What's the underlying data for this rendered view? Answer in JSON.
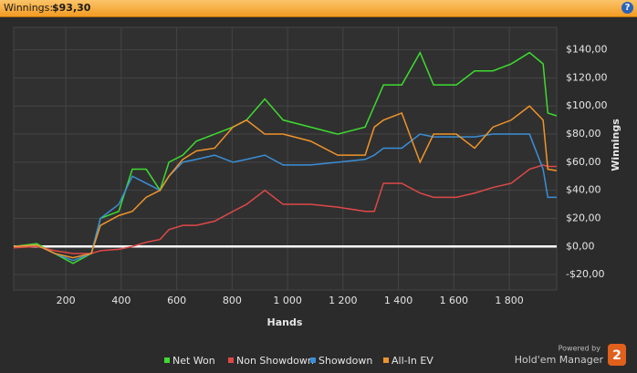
{
  "header": {
    "label": "Winnings:",
    "value": "$93,30"
  },
  "branding": {
    "powered": "Powered by",
    "product": "Hold'em Manager",
    "version": "2"
  },
  "chart_data": {
    "type": "line",
    "xlabel": "Hands",
    "ylabel": "Winnings",
    "x": [
      12,
      95,
      160,
      226,
      292,
      325,
      391,
      440,
      490,
      540,
      572,
      622,
      671,
      737,
      803,
      852,
      918,
      984,
      1083,
      1181,
      1280,
      1313,
      1346,
      1412,
      1478,
      1527,
      1609,
      1675,
      1741,
      1807,
      1873,
      1922,
      1939,
      1971
    ],
    "series": [
      {
        "name": "Net Won",
        "color": "#3ddc2f",
        "values": [
          0,
          2,
          -5,
          -12,
          -5,
          20,
          25,
          55,
          55,
          40,
          60,
          65,
          75,
          80,
          85,
          90,
          105,
          90,
          85,
          80,
          85,
          100,
          115,
          115,
          138,
          115,
          115,
          125,
          125,
          130,
          138,
          130,
          95,
          93
        ]
      },
      {
        "name": "Non Showdown",
        "color": "#e04848",
        "values": [
          -1,
          0,
          -3,
          -5,
          -5,
          -3,
          -2,
          0,
          3,
          5,
          12,
          15,
          15,
          18,
          25,
          30,
          40,
          30,
          30,
          28,
          25,
          25,
          45,
          45,
          38,
          35,
          35,
          38,
          42,
          45,
          55,
          58,
          57,
          57
        ]
      },
      {
        "name": "Showdown",
        "color": "#3a8fd8",
        "values": [
          0,
          1,
          -5,
          -10,
          -5,
          20,
          30,
          50,
          45,
          40,
          50,
          60,
          62,
          65,
          60,
          62,
          65,
          58,
          58,
          60,
          62,
          65,
          70,
          70,
          80,
          78,
          78,
          78,
          80,
          80,
          80,
          55,
          35,
          35
        ]
      },
      {
        "name": "All-In EV",
        "color": "#f0942a",
        "values": [
          0,
          1,
          -5,
          -8,
          -5,
          15,
          22,
          25,
          35,
          40,
          50,
          62,
          68,
          70,
          85,
          90,
          80,
          80,
          75,
          65,
          65,
          85,
          90,
          95,
          60,
          80,
          80,
          70,
          85,
          90,
          100,
          90,
          55,
          54
        ]
      }
    ],
    "xlim": [
      12,
      1971
    ],
    "xticks": [
      200,
      400,
      600,
      800,
      {
        "value": 1000,
        "label": "1 000"
      },
      {
        "value": 1200,
        "label": "1 200"
      },
      {
        "value": 1400,
        "label": "1 400"
      },
      {
        "value": 1600,
        "label": "1 600"
      },
      {
        "value": 1800,
        "label": "1 800"
      }
    ],
    "ylim": [
      -31,
      156
    ],
    "yticks": [
      {
        "value": -20,
        "label": "-$20,00"
      },
      {
        "value": 0,
        "label": "$0,00"
      },
      {
        "value": 20,
        "label": "$20,00"
      },
      {
        "value": 40,
        "label": "$40,00"
      },
      {
        "value": 60,
        "label": "$60,00"
      },
      {
        "value": 80,
        "label": "$80,00"
      },
      {
        "value": 100,
        "label": "$100,00"
      },
      {
        "value": 120,
        "label": "$120,00"
      },
      {
        "value": 140,
        "label": "$140,00"
      }
    ],
    "grid": true,
    "legend": "bottom"
  }
}
